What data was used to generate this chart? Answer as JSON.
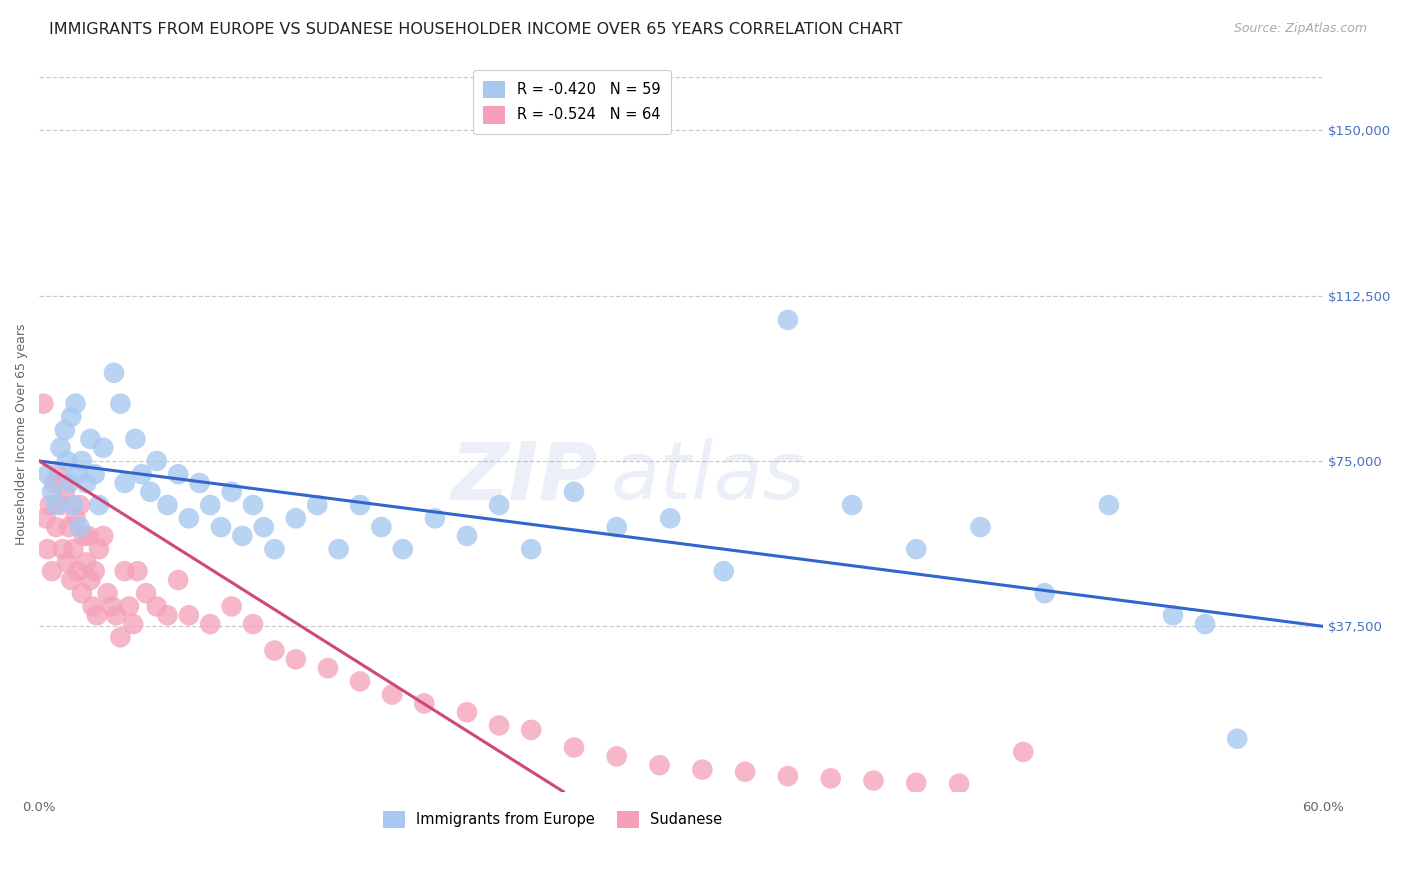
{
  "title": "IMMIGRANTS FROM EUROPE VS SUDANESE HOUSEHOLDER INCOME OVER 65 YEARS CORRELATION CHART",
  "source": "Source: ZipAtlas.com",
  "ylabel": "Householder Income Over 65 years",
  "right_ytick_labels": [
    "$150,000",
    "$112,500",
    "$75,000",
    "$37,500"
  ],
  "right_ytick_values": [
    150000,
    112500,
    75000,
    37500
  ],
  "ylim": [
    0,
    162000
  ],
  "xlim": [
    0.0,
    0.6
  ],
  "legend_europe": "R = -0.420   N = 59",
  "legend_sudanese": "R = -0.524   N = 64",
  "legend_bottom_europe": "Immigrants from Europe",
  "legend_bottom_sudanese": "Sudanese",
  "color_europe": "#a8c8f0",
  "color_sudanese": "#f4a0b8",
  "color_europe_line": "#3366cc",
  "color_sudanese_line": "#d04878",
  "watermark_color": "#4472c4",
  "title_fontsize": 11.5,
  "source_fontsize": 9,
  "axis_label_fontsize": 9,
  "tick_fontsize": 9.5,
  "europe_line_x0": 0.0,
  "europe_line_x1": 0.6,
  "europe_line_y0": 75000,
  "europe_line_y1": 37500,
  "sudanese_line_x0": 0.0,
  "sudanese_line_x1": 0.245,
  "sudanese_line_y0": 75000,
  "sudanese_line_y1": 0,
  "europe_x": [
    0.004,
    0.006,
    0.008,
    0.01,
    0.012,
    0.013,
    0.014,
    0.015,
    0.016,
    0.017,
    0.018,
    0.019,
    0.02,
    0.022,
    0.024,
    0.026,
    0.028,
    0.03,
    0.035,
    0.038,
    0.04,
    0.045,
    0.048,
    0.052,
    0.055,
    0.06,
    0.065,
    0.07,
    0.075,
    0.08,
    0.085,
    0.09,
    0.095,
    0.1,
    0.105,
    0.11,
    0.12,
    0.13,
    0.14,
    0.15,
    0.16,
    0.17,
    0.185,
    0.2,
    0.215,
    0.23,
    0.25,
    0.27,
    0.295,
    0.32,
    0.35,
    0.38,
    0.41,
    0.44,
    0.47,
    0.5,
    0.53,
    0.545,
    0.56
  ],
  "europe_y": [
    72000,
    68000,
    65000,
    78000,
    82000,
    75000,
    70000,
    85000,
    65000,
    88000,
    72000,
    60000,
    75000,
    70000,
    80000,
    72000,
    65000,
    78000,
    95000,
    88000,
    70000,
    80000,
    72000,
    68000,
    75000,
    65000,
    72000,
    62000,
    70000,
    65000,
    60000,
    68000,
    58000,
    65000,
    60000,
    55000,
    62000,
    65000,
    55000,
    65000,
    60000,
    55000,
    62000,
    58000,
    65000,
    55000,
    68000,
    60000,
    62000,
    50000,
    107000,
    65000,
    55000,
    60000,
    45000,
    65000,
    40000,
    38000,
    12000
  ],
  "sudanese_x": [
    0.002,
    0.003,
    0.004,
    0.005,
    0.006,
    0.007,
    0.008,
    0.009,
    0.01,
    0.011,
    0.012,
    0.013,
    0.014,
    0.015,
    0.016,
    0.017,
    0.018,
    0.019,
    0.02,
    0.021,
    0.022,
    0.023,
    0.024,
    0.025,
    0.026,
    0.027,
    0.028,
    0.03,
    0.032,
    0.034,
    0.036,
    0.038,
    0.04,
    0.042,
    0.044,
    0.046,
    0.05,
    0.055,
    0.06,
    0.065,
    0.07,
    0.08,
    0.09,
    0.1,
    0.11,
    0.12,
    0.135,
    0.15,
    0.165,
    0.18,
    0.2,
    0.215,
    0.23,
    0.25,
    0.27,
    0.29,
    0.31,
    0.33,
    0.35,
    0.37,
    0.39,
    0.41,
    0.43,
    0.46
  ],
  "sudanese_y": [
    88000,
    62000,
    55000,
    65000,
    50000,
    70000,
    60000,
    72000,
    65000,
    55000,
    68000,
    52000,
    60000,
    48000,
    55000,
    62000,
    50000,
    65000,
    45000,
    58000,
    52000,
    58000,
    48000,
    42000,
    50000,
    40000,
    55000,
    58000,
    45000,
    42000,
    40000,
    35000,
    50000,
    42000,
    38000,
    50000,
    45000,
    42000,
    40000,
    48000,
    40000,
    38000,
    42000,
    38000,
    32000,
    30000,
    28000,
    25000,
    22000,
    20000,
    18000,
    15000,
    14000,
    10000,
    8000,
    6000,
    5000,
    4500,
    3500,
    3000,
    2500,
    2000,
    1800,
    9000
  ]
}
